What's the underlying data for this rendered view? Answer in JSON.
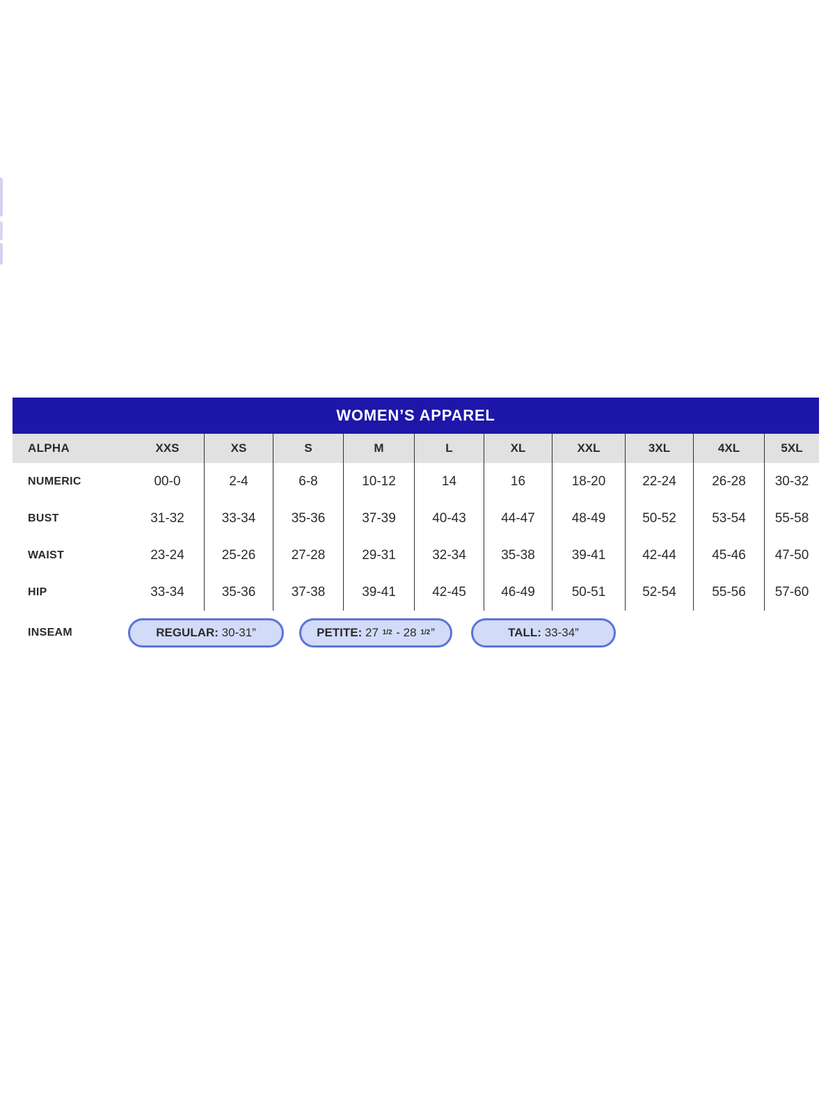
{
  "page": {
    "background": "#ffffff",
    "edge_marks": {
      "description": "faint-cropped-lavender-strips-left-edge",
      "color": "#c9c5ec"
    }
  },
  "colors": {
    "header_blue": "#1d16a8",
    "header_text": "#ffffff",
    "subheader_gray": "#e1e1e1",
    "divider": "#2f2f2f",
    "text": "#2b2b2b",
    "pill_fill": "#d2dbf7",
    "pill_border": "#5b74d8"
  },
  "table": {
    "title": "WOMEN’S APPAREL",
    "alpha_label": "ALPHA",
    "sizes": [
      "XXS",
      "XS",
      "S",
      "M",
      "L",
      "XL",
      "XXL",
      "3XL",
      "4XL",
      "5XL"
    ],
    "rows": [
      {
        "label": "NUMERIC",
        "values": [
          "00-0",
          "2-4",
          "6-8",
          "10-12",
          "14",
          "16",
          "18-20",
          "22-24",
          "26-28",
          "30-32"
        ]
      },
      {
        "label": "BUST",
        "values": [
          "31-32",
          "33-34",
          "35-36",
          "37-39",
          "40-43",
          "44-47",
          "48-49",
          "50-52",
          "53-54",
          "55-58"
        ]
      },
      {
        "label": "WAIST",
        "values": [
          "23-24",
          "25-26",
          "27-28",
          "29-31",
          "32-34",
          "35-38",
          "39-41",
          "42-44",
          "45-46",
          "47-50"
        ]
      },
      {
        "label": "HIP",
        "values": [
          "33-34",
          "35-36",
          "37-38",
          "39-41",
          "42-45",
          "46-49",
          "50-51",
          "52-54",
          "55-56",
          "57-60"
        ]
      }
    ],
    "inseam": {
      "label": "INSEAM",
      "pills": [
        {
          "name": "REGULAR",
          "segments": [
            {
              "text": "30-31”"
            }
          ]
        },
        {
          "name": "PETITE",
          "segments": [
            {
              "text": "27 "
            },
            {
              "sup": "1/2"
            },
            {
              "text": " - 28 "
            },
            {
              "sup": "1/2"
            },
            {
              "text": "”"
            }
          ]
        },
        {
          "name": "TALL",
          "segments": [
            {
              "text": "33-34”"
            }
          ]
        }
      ]
    }
  }
}
